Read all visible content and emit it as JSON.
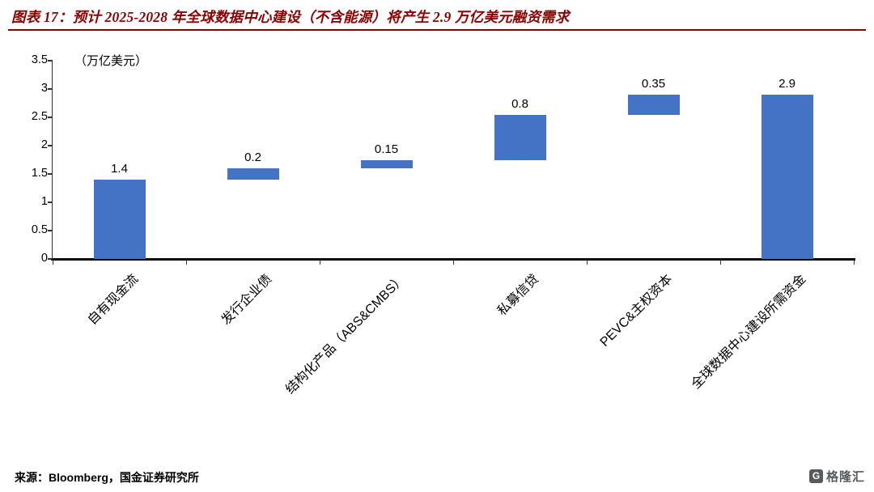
{
  "title": "图表 17：预计 2025-2028 年全球数据中心建设（不含能源）将产生 2.9 万亿美元融资需求",
  "source_note": "来源：Bloomberg，国金证券研究所",
  "brand": {
    "logo_glyph": "G",
    "name": "格隆汇"
  },
  "chart_data": {
    "type": "bar",
    "subtype": "waterfall",
    "title": "预计 2025-2028 年全球数据中心建设（不含能源）将产生 2.9 万亿美元融资需求",
    "unit_label": "（万亿美元）",
    "categories": [
      "自有现金流",
      "发行企业债",
      "结构化产品（ABS&CMBS）",
      "私募信贷",
      "PEVC&主权资本",
      "全球数据中心建设所需资金"
    ],
    "values": [
      1.4,
      0.2,
      0.15,
      0.8,
      0.35,
      2.9
    ],
    "bar_starts": [
      0,
      1.4,
      1.6,
      1.75,
      2.55,
      0
    ],
    "data_labels": [
      "1.4",
      "0.2",
      "0.15",
      "0.8",
      "0.35",
      "2.9"
    ],
    "ylim": [
      0,
      3.5
    ],
    "yticks": [
      0,
      0.5,
      1,
      1.5,
      2,
      2.5,
      3,
      3.5
    ],
    "bar_color": "#4472C4",
    "grid": false,
    "legend": "none",
    "title_color": "#8E0000"
  }
}
